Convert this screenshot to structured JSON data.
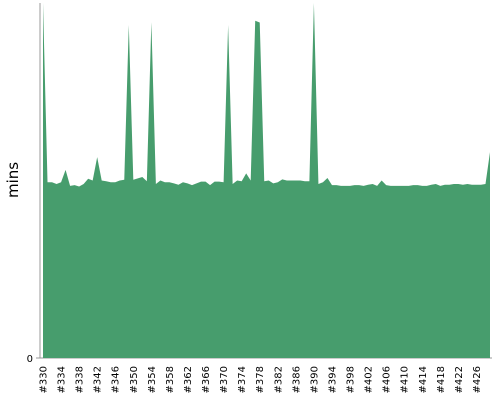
{
  "chart_data": {
    "type": "area",
    "y_label": "mins",
    "color": "#479d6d",
    "ylim": [
      0,
      10
    ],
    "yticks": [
      0
    ],
    "categories": [
      "#330",
      null,
      null,
      null,
      "#334",
      null,
      null,
      null,
      "#338",
      null,
      null,
      null,
      "#342",
      null,
      null,
      null,
      "#346",
      null,
      null,
      null,
      "#350",
      null,
      null,
      null,
      "#354",
      null,
      null,
      null,
      "#358",
      null,
      null,
      null,
      "#362",
      null,
      null,
      null,
      "#366",
      null,
      null,
      null,
      "#370",
      null,
      null,
      null,
      "#374",
      null,
      null,
      null,
      "#378",
      null,
      null,
      null,
      "#382",
      null,
      null,
      null,
      "#386",
      null,
      null,
      null,
      "#390",
      null,
      null,
      null,
      "#394",
      null,
      null,
      null,
      "#398",
      null,
      null,
      null,
      "#402",
      null,
      null,
      null,
      "#406",
      null,
      null,
      null,
      "#410",
      null,
      null,
      null,
      "#414",
      null,
      null,
      null,
      "#418",
      null,
      null,
      null,
      "#422",
      null,
      null,
      null,
      "#426",
      null,
      null,
      null
    ],
    "values": [
      10,
      4.95,
      4.95,
      4.9,
      4.95,
      5.3,
      4.85,
      4.87,
      4.83,
      4.9,
      5.05,
      5.0,
      5.66,
      5.0,
      4.98,
      4.95,
      4.95,
      5.0,
      5.02,
      9.38,
      5.02,
      5.06,
      5.1,
      4.98,
      9.46,
      4.9,
      5.0,
      4.95,
      4.95,
      4.92,
      4.88,
      4.95,
      4.92,
      4.87,
      4.92,
      4.97,
      4.97,
      4.87,
      4.97,
      4.97,
      4.95,
      9.38,
      4.9,
      5.0,
      4.98,
      5.2,
      5.0,
      9.5,
      9.45,
      4.98,
      5.0,
      4.92,
      4.95,
      5.03,
      5.0,
      5.0,
      5.0,
      5.0,
      4.98,
      4.98,
      10,
      4.9,
      4.95,
      5.07,
      4.87,
      4.87,
      4.85,
      4.85,
      4.85,
      4.87,
      4.87,
      4.85,
      4.88,
      4.9,
      4.85,
      5.0,
      4.87,
      4.85,
      4.85,
      4.85,
      4.85,
      4.85,
      4.87,
      4.87,
      4.85,
      4.85,
      4.88,
      4.9,
      4.85,
      4.88,
      4.88,
      4.9,
      4.9,
      4.88,
      4.9,
      4.88,
      4.88,
      4.88,
      4.9,
      5.8
    ]
  }
}
